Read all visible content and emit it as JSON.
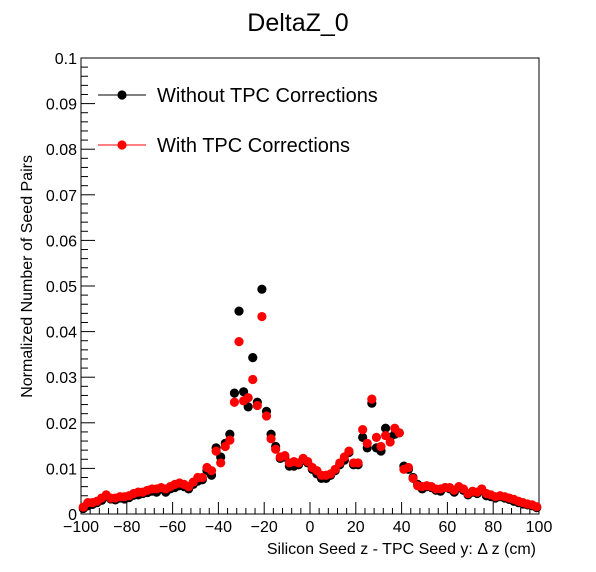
{
  "chart_data": {
    "type": "scatter",
    "title": "DeltaZ_0",
    "xlabel": "Silicon Seed z - TPC Seed y:   Δ z (cm)",
    "ylabel": "Normalized Number of Seed Pairs",
    "xlim": [
      -100,
      100
    ],
    "ylim": [
      0,
      0.1
    ],
    "x_ticks": [
      "−100",
      "−80",
      "−60",
      "−40",
      "−20",
      "0",
      "20",
      "40",
      "60",
      "80",
      "100"
    ],
    "y_ticks": [
      "0",
      "0.01",
      "0.02",
      "0.03",
      "0.04",
      "0.05",
      "0.06",
      "0.07",
      "0.08",
      "0.09",
      "0.1"
    ],
    "legend_position": "top-left",
    "x": [
      -99,
      -97,
      -95,
      -93,
      -91,
      -89,
      -87,
      -85,
      -83,
      -81,
      -79,
      -77,
      -75,
      -73,
      -71,
      -69,
      -67,
      -65,
      -63,
      -61,
      -59,
      -57,
      -55,
      -53,
      -51,
      -49,
      -47,
      -45,
      -43,
      -41,
      -39,
      -37,
      -35,
      -33,
      -31,
      -29,
      -27,
      -25,
      -23,
      -21,
      -19,
      -17,
      -15,
      -13,
      -11,
      -9,
      -7,
      -5,
      -3,
      -1,
      1,
      3,
      5,
      7,
      9,
      11,
      13,
      15,
      17,
      19,
      21,
      23,
      25,
      27,
      29,
      31,
      33,
      35,
      37,
      39,
      41,
      43,
      45,
      47,
      49,
      51,
      53,
      55,
      57,
      59,
      61,
      63,
      65,
      67,
      69,
      71,
      73,
      75,
      77,
      79,
      81,
      83,
      85,
      87,
      89,
      91,
      93,
      95,
      97,
      99
    ],
    "series": [
      {
        "name": "Without TPC Corrections",
        "color": "#000000",
        "values": [
          0.0012,
          0.0018,
          0.0021,
          0.0025,
          0.003,
          0.0038,
          0.0033,
          0.0031,
          0.0035,
          0.0033,
          0.0036,
          0.0041,
          0.0042,
          0.0045,
          0.0047,
          0.005,
          0.0048,
          0.0055,
          0.0048,
          0.0055,
          0.0058,
          0.0062,
          0.006,
          0.0055,
          0.0065,
          0.0072,
          0.0075,
          0.0095,
          0.0085,
          0.0145,
          0.0125,
          0.0155,
          0.0175,
          0.0265,
          0.0445,
          0.0268,
          0.0235,
          0.0343,
          0.0245,
          0.0493,
          0.0225,
          0.0175,
          0.0148,
          0.0122,
          0.0125,
          0.0105,
          0.0105,
          0.0108,
          0.0118,
          0.0112,
          0.0098,
          0.0088,
          0.0078,
          0.0078,
          0.0085,
          0.0095,
          0.0108,
          0.0118,
          0.0135,
          0.0108,
          0.0108,
          0.0168,
          0.0145,
          0.0243,
          0.0145,
          0.0138,
          0.0188,
          0.0168,
          0.0175,
          0.0178,
          0.0105,
          0.0098,
          0.008,
          0.0065,
          0.0055,
          0.006,
          0.0058,
          0.0052,
          0.005,
          0.0058,
          0.0055,
          0.0048,
          0.0058,
          0.0052,
          0.0042,
          0.0048,
          0.0045,
          0.0052,
          0.004,
          0.0038,
          0.0035,
          0.0038,
          0.0035,
          0.0032,
          0.0028,
          0.0025,
          0.0022,
          0.002,
          0.0018,
          0.0014
        ]
      },
      {
        "name": "With TPC Corrections",
        "color": "#ff0000",
        "values": [
          0.0015,
          0.0025,
          0.0025,
          0.0028,
          0.0035,
          0.0042,
          0.0035,
          0.0035,
          0.0038,
          0.0038,
          0.004,
          0.0045,
          0.0048,
          0.0048,
          0.0052,
          0.0055,
          0.0055,
          0.0058,
          0.0055,
          0.006,
          0.0065,
          0.0068,
          0.0065,
          0.006,
          0.007,
          0.008,
          0.008,
          0.0102,
          0.0095,
          0.0138,
          0.0112,
          0.0148,
          0.0162,
          0.0245,
          0.0378,
          0.0248,
          0.0255,
          0.0295,
          0.0238,
          0.0433,
          0.0215,
          0.0165,
          0.0142,
          0.0125,
          0.0128,
          0.0112,
          0.0115,
          0.0112,
          0.0122,
          0.0115,
          0.0102,
          0.0095,
          0.0085,
          0.0085,
          0.0088,
          0.0098,
          0.0112,
          0.0125,
          0.0138,
          0.0112,
          0.0112,
          0.0185,
          0.0155,
          0.0252,
          0.0168,
          0.0148,
          0.0172,
          0.0158,
          0.0188,
          0.0178,
          0.0098,
          0.0102,
          0.0078,
          0.0062,
          0.006,
          0.0062,
          0.006,
          0.0055,
          0.0055,
          0.0058,
          0.0058,
          0.0052,
          0.006,
          0.0055,
          0.0045,
          0.005,
          0.0048,
          0.0055,
          0.0045,
          0.0042,
          0.0038,
          0.004,
          0.0038,
          0.0035,
          0.0032,
          0.0028,
          0.0025,
          0.0022,
          0.002,
          0.0016
        ]
      }
    ]
  }
}
